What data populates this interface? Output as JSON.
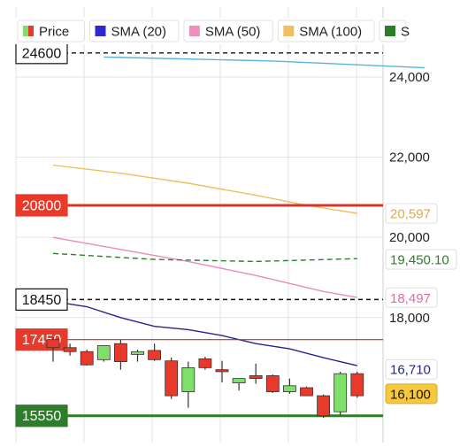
{
  "colors": {
    "bull": "#7ee06a",
    "bear": "#e8392b",
    "wick": "#333333",
    "grid": "#e3e3e3",
    "sma20": "#25258f",
    "sma50": "#e98bbd",
    "sma100": "#eebf60",
    "green_sma": "#2e7d2a",
    "blue_line": "#59b4d9"
  },
  "legend": {
    "items": [
      {
        "label": "Price",
        "icon": "price-swatch-icon",
        "color": "#e8392b"
      },
      {
        "label": "SMA (20)",
        "icon": "sma20-swatch-icon",
        "color": "#2a2ad0"
      },
      {
        "label": "SMA (50)",
        "icon": "sma50-swatch-icon",
        "color": "#ee8fc0"
      },
      {
        "label": "SMA (100)",
        "icon": "sma100-swatch-icon",
        "color": "#f0c060"
      },
      {
        "label": "S",
        "icon": "sma200-swatch-icon",
        "color": "#2e7d2a"
      }
    ]
  },
  "chart_data": {
    "type": "candlestick",
    "ylim": [
      15000,
      25200
    ],
    "y_ticks": [
      {
        "value": 24000,
        "label": "24,000"
      },
      {
        "value": 22000,
        "label": "22,000"
      },
      {
        "value": 20000,
        "label": "20,000"
      },
      {
        "value": 18000,
        "label": "18,000"
      }
    ],
    "candles": [
      {
        "open": 17450,
        "high": 17500,
        "low": 16900,
        "close": 17250
      },
      {
        "open": 17250,
        "high": 17350,
        "low": 17050,
        "close": 17150
      },
      {
        "open": 17150,
        "high": 17200,
        "low": 16800,
        "close": 16820
      },
      {
        "open": 16950,
        "high": 17250,
        "low": 16900,
        "close": 17300
      },
      {
        "open": 17350,
        "high": 17450,
        "low": 16700,
        "close": 16900
      },
      {
        "open": 17080,
        "high": 17200,
        "low": 16900,
        "close": 17150
      },
      {
        "open": 17180,
        "high": 17350,
        "low": 16920,
        "close": 16950
      },
      {
        "open": 16920,
        "high": 17000,
        "low": 15970,
        "close": 16050
      },
      {
        "open": 16150,
        "high": 16900,
        "low": 15750,
        "close": 16750
      },
      {
        "open": 16970,
        "high": 17020,
        "low": 16700,
        "close": 16750
      },
      {
        "open": 16700,
        "high": 16920,
        "low": 16380,
        "close": 16650
      },
      {
        "open": 16370,
        "high": 16480,
        "low": 16180,
        "close": 16480
      },
      {
        "open": 16550,
        "high": 16850,
        "low": 16350,
        "close": 16480
      },
      {
        "open": 16550,
        "high": 16580,
        "low": 16120,
        "close": 16150
      },
      {
        "open": 16150,
        "high": 16480,
        "low": 16100,
        "close": 16300
      },
      {
        "open": 16250,
        "high": 16280,
        "low": 16050,
        "close": 16050
      },
      {
        "open": 16050,
        "high": 16080,
        "low": 15500,
        "close": 15550
      },
      {
        "open": 15650,
        "high": 16650,
        "low": 15560,
        "close": 16600
      },
      {
        "open": 16600,
        "high": 16650,
        "low": 16000,
        "close": 16050
      }
    ],
    "sma_lines": [
      {
        "name": "SMA (20)",
        "color": "#25258f",
        "dashed": false,
        "values": [
          [
            0,
            18400
          ],
          [
            2,
            18270
          ],
          [
            4,
            18000
          ],
          [
            6,
            17780
          ],
          [
            8,
            17700
          ],
          [
            10,
            17550
          ],
          [
            12,
            17350
          ],
          [
            14,
            17220
          ],
          [
            16,
            17000
          ],
          [
            18,
            16800
          ]
        ]
      },
      {
        "name": "SMA (50)",
        "color": "#e98bbd",
        "dashed": false,
        "values": [
          [
            0,
            20000
          ],
          [
            4,
            19700
          ],
          [
            8,
            19400
          ],
          [
            12,
            19050
          ],
          [
            16,
            18650
          ],
          [
            18,
            18500
          ]
        ]
      },
      {
        "name": "SMA (100)",
        "color": "#eebf60",
        "dashed": false,
        "values": [
          [
            0,
            21800
          ],
          [
            4,
            21600
          ],
          [
            8,
            21350
          ],
          [
            12,
            21050
          ],
          [
            15,
            20800
          ],
          [
            18,
            20600
          ]
        ]
      },
      {
        "name": "",
        "color": "#2e7d2a",
        "dashed": true,
        "values": [
          [
            0,
            19600
          ],
          [
            6,
            19450
          ],
          [
            12,
            19400
          ],
          [
            18,
            19470
          ]
        ]
      },
      {
        "name": "",
        "color": "#59b4d9",
        "dashed": false,
        "values": [
          [
            3,
            24500
          ],
          [
            13,
            24400
          ],
          [
            22,
            24230
          ]
        ]
      }
    ],
    "h_lines": [
      {
        "value": 24600,
        "label": "24600",
        "style": "dashed",
        "color": "#111111",
        "label_bg": "#ffffff",
        "label_fg": "#111111",
        "label_border": "#111111"
      },
      {
        "value": 20800,
        "label": "20800",
        "style": "solid-thick",
        "color": "#d9362a",
        "label_bg": "#e8392b",
        "label_fg": "#ffffff",
        "label_border": "#e8392b"
      },
      {
        "value": 18450,
        "label": "18450",
        "style": "dashed",
        "color": "#111111",
        "label_bg": "#ffffff",
        "label_fg": "#111111",
        "label_border": "#111111"
      },
      {
        "value": 17450,
        "label": "17450",
        "style": "solid",
        "color": "#c0302a",
        "label_bg": "#e8392b",
        "label_fg": "#ffffff",
        "label_border": "#e8392b"
      },
      {
        "value": 15550,
        "label": "15550",
        "style": "solid-thick",
        "color": "#2e7d2a",
        "label_bg": "#2e7d2a",
        "label_fg": "#ffffff",
        "label_border": "#2e7d2a"
      }
    ],
    "price_tags": [
      {
        "value": 20597,
        "label": "20,597",
        "color": "#e3a948",
        "bg": "#ffffff",
        "border": "#dddddd"
      },
      {
        "value": 19450.1,
        "label": "19,450.10",
        "color": "#2e7d2a",
        "bg": "#ffffff",
        "border": "#dddddd"
      },
      {
        "value": 18497,
        "label": "18,497",
        "color": "#e06aa8",
        "bg": "#ffffff",
        "border": "#dddddd"
      },
      {
        "value": 16710,
        "label": "16,710",
        "color": "#25258f",
        "bg": "#ffffff",
        "border": "#dddddd"
      },
      {
        "value": 16100,
        "label": "16,100",
        "color": "#111111",
        "bg": "#f6c83c",
        "border": "#d9a82c"
      }
    ]
  }
}
